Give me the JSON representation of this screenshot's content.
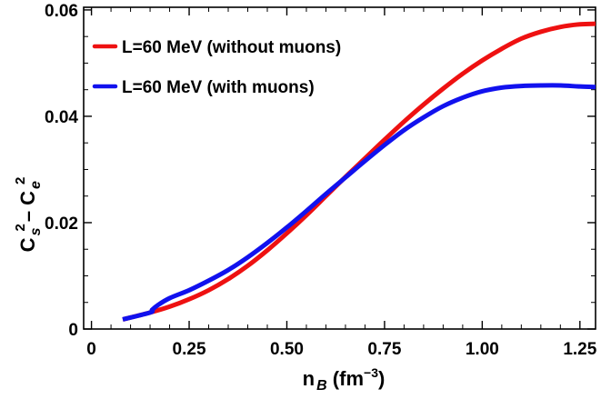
{
  "chart_data": {
    "type": "line",
    "title": "",
    "xlabel": {
      "main": "n",
      "sub": "B",
      "unit_pre": " (fm",
      "unit_sup": "−3",
      "unit_post": ")"
    },
    "ylabel": {
      "c1": "C",
      "s1": "s",
      "sup1": "2",
      "mid": "– C",
      "s2": "e",
      "sup2": "2"
    },
    "xlim": [
      -0.02,
      1.29
    ],
    "ylim": [
      0,
      0.0605
    ],
    "x_ticks": [
      {
        "v": 0,
        "label": "0"
      },
      {
        "v": 0.25,
        "label": "0.25"
      },
      {
        "v": 0.5,
        "label": "0.50"
      },
      {
        "v": 0.75,
        "label": "0.75"
      },
      {
        "v": 1.0,
        "label": "1.00"
      },
      {
        "v": 1.25,
        "label": "1.25"
      }
    ],
    "y_ticks": [
      {
        "v": 0,
        "label": "0"
      },
      {
        "v": 0.02,
        "label": "0.02"
      },
      {
        "v": 0.04,
        "label": "0.04"
      },
      {
        "v": 0.06,
        "label": "0.06"
      }
    ],
    "legend_position": "top-left",
    "grid": false,
    "series": [
      {
        "name": "L=60 MeV (without muons)",
        "color": "#ee1111",
        "x": [
          0.08,
          0.15,
          0.2,
          0.25,
          0.3,
          0.35,
          0.4,
          0.45,
          0.5,
          0.55,
          0.6,
          0.65,
          0.7,
          0.75,
          0.8,
          0.85,
          0.9,
          0.95,
          1.0,
          1.05,
          1.1,
          1.15,
          1.2,
          1.25,
          1.29
        ],
        "y": [
          0.0018,
          0.0031,
          0.0042,
          0.0056,
          0.0073,
          0.0094,
          0.0119,
          0.0148,
          0.018,
          0.0214,
          0.025,
          0.0286,
          0.0321,
          0.0356,
          0.039,
          0.0422,
          0.0452,
          0.048,
          0.0505,
          0.0527,
          0.0546,
          0.0559,
          0.0568,
          0.0573,
          0.0574
        ]
      },
      {
        "name": "L=60 MeV (with muons)",
        "color": "#1111ee",
        "x": [
          0.08,
          0.15,
          0.155,
          0.17,
          0.2,
          0.25,
          0.3,
          0.35,
          0.4,
          0.45,
          0.5,
          0.55,
          0.6,
          0.65,
          0.7,
          0.75,
          0.8,
          0.85,
          0.9,
          0.95,
          1.0,
          1.05,
          1.1,
          1.15,
          1.2,
          1.25,
          1.29
        ],
        "y": [
          0.0018,
          0.0031,
          0.0036,
          0.0045,
          0.0058,
          0.0073,
          0.0091,
          0.0111,
          0.0135,
          0.0162,
          0.0191,
          0.0222,
          0.0254,
          0.0285,
          0.0316,
          0.0346,
          0.0374,
          0.0398,
          0.0419,
          0.0435,
          0.0447,
          0.0454,
          0.0457,
          0.0458,
          0.0458,
          0.0456,
          0.0455
        ]
      }
    ]
  }
}
